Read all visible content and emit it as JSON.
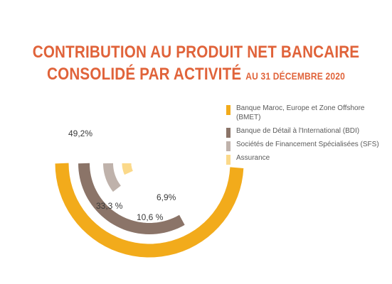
{
  "title_line1": "CONTRIBUTION AU PRODUIT NET BANCAIRE",
  "title_line2": "CONSOLIDÉ PAR ACTIVITÉ",
  "title_suffix": "AU 31 DÉCEMBRE 2020",
  "chart_data": {
    "type": "pie",
    "title": "CONTRIBUTION AU PRODUIT NET BANCAIRE CONSOLIDÉ PAR ACTIVITÉ AU 31 DÉCEMBRE 2020",
    "legend_position": "top-right",
    "series": [
      {
        "name": "Banque Maroc, Europe et Zone Offshore (BMET)",
        "label": "49,2%",
        "value": 49.2,
        "color": "#f2ab1b"
      },
      {
        "name": "Banque de Détail à l'International (BDI)",
        "label": "33,3 %",
        "value": 33.3,
        "color": "#8b7468"
      },
      {
        "name": "Sociétés de Financement Spécialisées (SFS)",
        "label": "10,6 %",
        "value": 10.6,
        "color": "#bfb2ab"
      },
      {
        "name": "Assurance",
        "label": "6,9%",
        "value": 6.9,
        "color": "#fbd98a"
      }
    ]
  }
}
